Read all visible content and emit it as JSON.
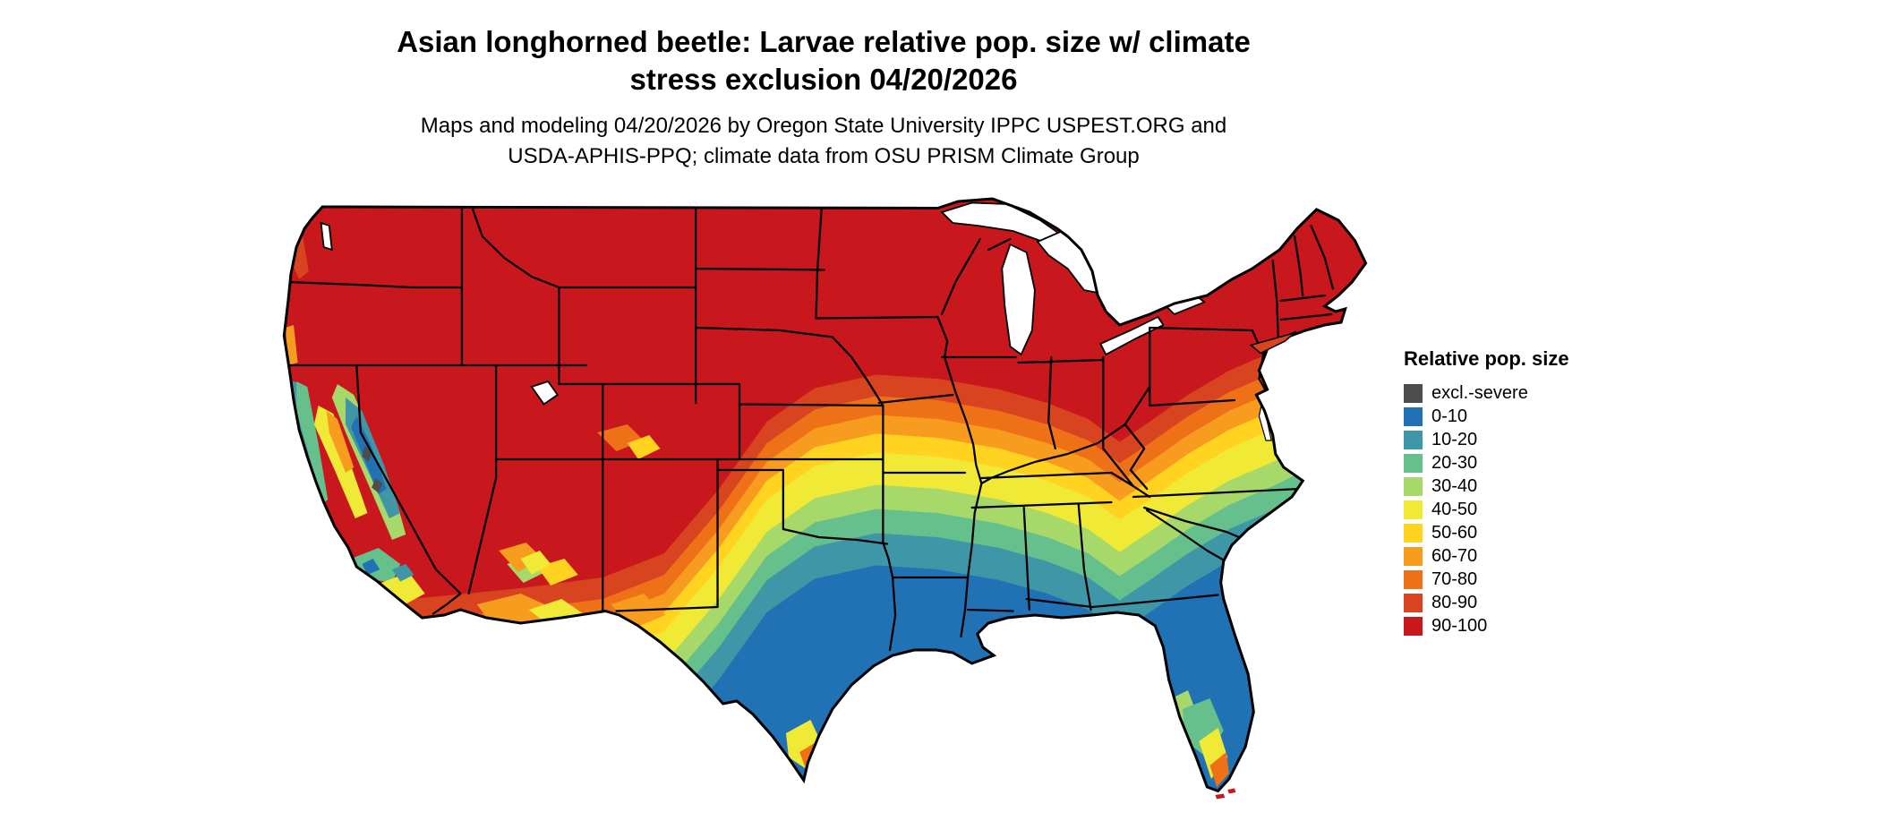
{
  "title": {
    "line1": "Asian longhorned beetle: Larvae relative pop. size w/ climate",
    "line2": "stress exclusion 04/20/2026"
  },
  "subtitle": {
    "line1": "Maps and modeling 04/20/2026 by Oregon State University IPPC USPEST.ORG and",
    "line2": "USDA-APHIS-PPQ; climate data from OSU PRISM Climate Group"
  },
  "legend": {
    "title": "Relative pop. size",
    "items": [
      {
        "label": "excl.-severe",
        "color": "#4D4D4D"
      },
      {
        "label": "0-10",
        "color": "#2171B5"
      },
      {
        "label": "10-20",
        "color": "#3F96A7"
      },
      {
        "label": "20-30",
        "color": "#66C08C"
      },
      {
        "label": "30-40",
        "color": "#A6D96A"
      },
      {
        "label": "40-50",
        "color": "#F0E936"
      },
      {
        "label": "50-60",
        "color": "#FFD320"
      },
      {
        "label": "60-70",
        "color": "#F89C20"
      },
      {
        "label": "70-80",
        "color": "#EE7118"
      },
      {
        "label": "80-90",
        "color": "#D8441F"
      },
      {
        "label": "90-100",
        "color": "#C8171D"
      }
    ],
    "colors_meta": {
      "map_background": "#FFFFFF",
      "boundary_lines": "#000000",
      "water_bodies": "#FFFFFF"
    }
  }
}
